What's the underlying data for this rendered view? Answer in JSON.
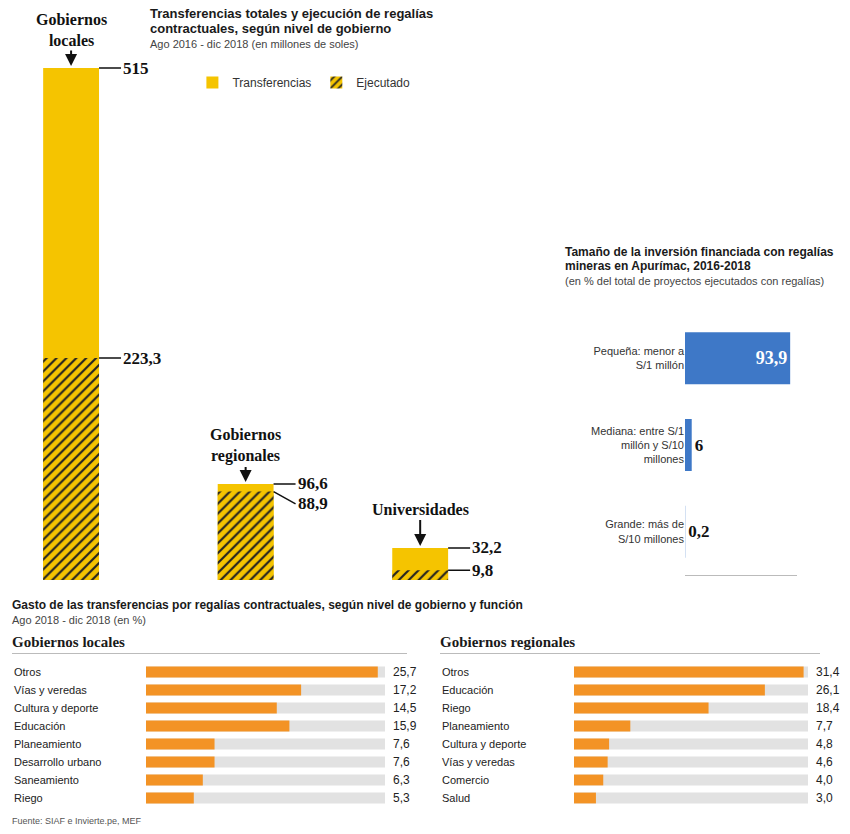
{
  "chart_data": [
    {
      "type": "bar",
      "title": "Transferencias totales y ejecución de regalías contractuales, según nivel de gobierno",
      "subtitle": "Ago 2016 - dic 2018 (en millones de soles)",
      "categories": [
        "Gobiernos locales",
        "Gobiernos regionales",
        "Universidades"
      ],
      "series": [
        {
          "name": "Transferencias",
          "color": "#f5c400",
          "values": [
            515,
            96.6,
            32.2
          ],
          "value_labels": [
            "515",
            "96,6",
            "32,2"
          ]
        },
        {
          "name": "Ejecutado",
          "color": "#f5c400",
          "marker": "hatched",
          "values": [
            223.3,
            88.9,
            9.8
          ],
          "value_labels": [
            "223,3",
            "88,9",
            "9,8"
          ]
        }
      ],
      "ylim": [
        0,
        515
      ],
      "data_labels": true,
      "tick_labels": "x",
      "legend": "top",
      "grid": false
    },
    {
      "type": "bar",
      "title": "Tamaño de la inversión financiada con regalías mineras en Apurímac, 2016-2018",
      "subtitle": "(en % del total de proyectos ejecutados con regalías)",
      "orientation": "horizontal",
      "categories": [
        "Pequeña: menor a S/1 millón",
        "Mediana: entre S/1 millón y S/10 millones",
        "Grande: más de S/10 millones"
      ],
      "values": [
        93.9,
        6,
        0.2
      ],
      "value_labels": [
        "93,9",
        "6",
        "0,2"
      ],
      "color": "#3e78c7",
      "xlim": [
        0,
        100
      ],
      "data_labels": true,
      "tick_labels": "y"
    },
    {
      "type": "bar",
      "title": "Gobiernos locales",
      "orientation": "horizontal",
      "categories": [
        "Otros",
        "Vías y veredas",
        "Cultura y deporte",
        "Educación",
        "Planeamiento",
        "Desarrollo urbano",
        "Saneamiento",
        "Riego"
      ],
      "values": [
        25.7,
        17.2,
        14.5,
        15.9,
        7.6,
        7.6,
        6.3,
        5.3
      ],
      "value_labels": [
        "25,7",
        "17,2",
        "14,5",
        "15,9",
        "7,6",
        "7,6",
        "6,3",
        "5,3"
      ],
      "color": "#f39325",
      "xlim": [
        0,
        26.5
      ],
      "data_labels": true,
      "tick_labels": "y"
    },
    {
      "type": "bar",
      "title": "Gobiernos regionales",
      "orientation": "horizontal",
      "categories": [
        "Otros",
        "Educación",
        "Riego",
        "Planeamiento",
        "Cultura y deporte",
        "Vías y veredas",
        "Comercio",
        "Salud"
      ],
      "values": [
        31.4,
        26.1,
        18.4,
        7.7,
        4.8,
        4.6,
        4.0,
        3.0
      ],
      "value_labels": [
        "31,4",
        "26,1",
        "18,4",
        "7,7",
        "4,8",
        "4,6",
        "4,0",
        "3,0"
      ],
      "color": "#f39325",
      "xlim": [
        0,
        32
      ],
      "data_labels": true,
      "tick_labels": "y"
    }
  ],
  "group": {
    "title": "Gasto de las transferencias por regalías contractuales, según nivel de gobierno y función",
    "subtitle": "Ago 2018 - dic 2018 (en %)"
  },
  "source": "Fuente: SIAF e Invierte.pe, MEF"
}
